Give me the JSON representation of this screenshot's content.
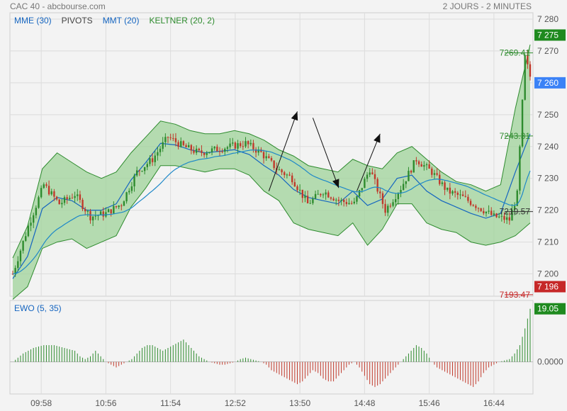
{
  "header": {
    "title": "CAC 40 - abcbourse.com",
    "period": "2 JOURS - 2 MINUTES"
  },
  "legend": [
    {
      "label": "MME (30)",
      "color": "#1565c0"
    },
    {
      "label": "PIVOTS",
      "color": "#444444"
    },
    {
      "label": "MMT (20)",
      "color": "#1565c0"
    },
    {
      "label": "KELTNER (20, 2)",
      "color": "#2e8b2e"
    }
  ],
  "colors": {
    "up": "#2e8b2e",
    "down": "#c0392b",
    "band_fill": "#9fd39a",
    "band_line": "#2e8b2e",
    "mme": "#1e88c8",
    "mmt": "#1565c0",
    "price_tag_up": "#1f8a1f",
    "price_tag_current": "#3b82f6",
    "price_tag_down": "#c62828",
    "grid": "#dcdcdc"
  },
  "chart_data": [
    {
      "type": "candlestick",
      "title": "CAC 40",
      "ylim": [
        7193,
        7282
      ],
      "y_ticks": [
        "7 280",
        "7 270",
        "7 260",
        "7 250",
        "7 240",
        "7 230",
        "7 220",
        "7 210",
        "7 200"
      ],
      "y_tick_values": [
        7280,
        7270,
        7260,
        7250,
        7240,
        7230,
        7220,
        7210,
        7200
      ],
      "x_ticks": [
        "09:58",
        "10:56",
        "11:54",
        "12:52",
        "13:50",
        "14:48",
        "15:46",
        "16:44"
      ],
      "price_path": [
        [
          0,
          7200
        ],
        [
          6,
          7215
        ],
        [
          12,
          7228
        ],
        [
          18,
          7222
        ],
        [
          24,
          7225
        ],
        [
          30,
          7218
        ],
        [
          36,
          7219
        ],
        [
          42,
          7222
        ],
        [
          48,
          7232
        ],
        [
          54,
          7236
        ],
        [
          60,
          7243
        ],
        [
          66,
          7240
        ],
        [
          72,
          7238
        ],
        [
          78,
          7239
        ],
        [
          84,
          7240
        ],
        [
          90,
          7241
        ],
        [
          96,
          7238
        ],
        [
          102,
          7233
        ],
        [
          108,
          7230
        ],
        [
          114,
          7222
        ],
        [
          120,
          7226
        ],
        [
          126,
          7223
        ],
        [
          132,
          7222
        ],
        [
          138,
          7233
        ],
        [
          144,
          7220
        ],
        [
          150,
          7227
        ],
        [
          156,
          7236
        ],
        [
          162,
          7232
        ],
        [
          168,
          7226
        ],
        [
          174,
          7224
        ],
        [
          180,
          7221
        ],
        [
          186,
          7218
        ],
        [
          192,
          7217
        ],
        [
          195,
          7225
        ],
        [
          198,
          7268
        ],
        [
          200,
          7262
        ]
      ],
      "bands": {
        "upper": [
          7205,
          7215,
          7233,
          7238,
          7235,
          7232,
          7230,
          7232,
          7238,
          7243,
          7248,
          7247,
          7245,
          7244,
          7244,
          7245,
          7244,
          7242,
          7239,
          7237,
          7234,
          7233,
          7232,
          7236,
          7234,
          7233,
          7238,
          7240,
          7236,
          7232,
          7229,
          7228,
          7226,
          7228,
          7252,
          7272
        ],
        "lower": [
          7192,
          7196,
          7208,
          7210,
          7211,
          7208,
          7210,
          7212,
          7221,
          7227,
          7234,
          7234,
          7233,
          7232,
          7233,
          7233,
          7231,
          7226,
          7223,
          7216,
          7214,
          7213,
          7212,
          7216,
          7209,
          7214,
          7222,
          7222,
          7216,
          7214,
          7213,
          7210,
          7209,
          7210,
          7212,
          7216
        ]
      },
      "price_labels": [
        {
          "text": "7269.41",
          "value": 7269.41,
          "color": "#2e8b2e"
        },
        {
          "text": "7243.31",
          "value": 7243.31,
          "color": "#2e8b2e"
        },
        {
          "text": "7219.57",
          "value": 7219.57,
          "color": "#333333"
        },
        {
          "text": "7193.47",
          "value": 7193.47,
          "color": "#c62828"
        }
      ],
      "price_tags": [
        {
          "text": "7 275",
          "value": 7275,
          "kind": "up"
        },
        {
          "text": "7 260",
          "value": 7260,
          "kind": "current"
        },
        {
          "text": "7 196",
          "value": 7196,
          "kind": "down"
        }
      ]
    },
    {
      "type": "bar",
      "title": "EWO (5, 35)",
      "zero_label": "0.0000",
      "last_value_tag": "19.05",
      "ylim": [
        -10,
        20
      ],
      "values_path": [
        [
          0,
          0
        ],
        [
          4,
          3
        ],
        [
          8,
          5
        ],
        [
          12,
          6
        ],
        [
          16,
          6
        ],
        [
          20,
          5
        ],
        [
          24,
          4
        ],
        [
          26,
          2
        ],
        [
          28,
          1
        ],
        [
          30,
          2
        ],
        [
          32,
          4
        ],
        [
          34,
          2
        ],
        [
          36,
          0
        ],
        [
          38,
          -1
        ],
        [
          40,
          -2
        ],
        [
          42,
          -1
        ],
        [
          44,
          0
        ],
        [
          46,
          1
        ],
        [
          48,
          3
        ],
        [
          50,
          5
        ],
        [
          52,
          6
        ],
        [
          54,
          6
        ],
        [
          56,
          5
        ],
        [
          58,
          4
        ],
        [
          60,
          5
        ],
        [
          62,
          6
        ],
        [
          64,
          7
        ],
        [
          66,
          8
        ],
        [
          68,
          6
        ],
        [
          70,
          4
        ],
        [
          72,
          2
        ],
        [
          74,
          1
        ],
        [
          76,
          0
        ],
        [
          78,
          -0.5
        ],
        [
          80,
          -1
        ],
        [
          82,
          -1
        ],
        [
          84,
          -0.5
        ],
        [
          86,
          0
        ],
        [
          88,
          1
        ],
        [
          90,
          1.5
        ],
        [
          92,
          1
        ],
        [
          94,
          0.5
        ],
        [
          96,
          0
        ],
        [
          98,
          -1
        ],
        [
          100,
          -3
        ],
        [
          102,
          -4
        ],
        [
          104,
          -5
        ],
        [
          106,
          -6
        ],
        [
          108,
          -7
        ],
        [
          110,
          -8
        ],
        [
          112,
          -7
        ],
        [
          114,
          -5
        ],
        [
          116,
          -3
        ],
        [
          118,
          -4
        ],
        [
          120,
          -6
        ],
        [
          122,
          -7
        ],
        [
          124,
          -7
        ],
        [
          126,
          -5
        ],
        [
          128,
          -3
        ],
        [
          130,
          -1
        ],
        [
          132,
          0
        ],
        [
          134,
          -2
        ],
        [
          136,
          -5
        ],
        [
          138,
          -8
        ],
        [
          140,
          -9
        ],
        [
          142,
          -8
        ],
        [
          144,
          -6
        ],
        [
          146,
          -4
        ],
        [
          148,
          -2
        ],
        [
          150,
          0
        ],
        [
          152,
          2
        ],
        [
          154,
          4
        ],
        [
          156,
          6
        ],
        [
          158,
          5
        ],
        [
          160,
          3
        ],
        [
          162,
          0
        ],
        [
          164,
          -2
        ],
        [
          166,
          -3
        ],
        [
          168,
          -4
        ],
        [
          170,
          -5
        ],
        [
          172,
          -6
        ],
        [
          174,
          -7
        ],
        [
          176,
          -8
        ],
        [
          178,
          -9
        ],
        [
          180,
          -7
        ],
        [
          182,
          -4
        ],
        [
          184,
          -2
        ],
        [
          186,
          -1
        ],
        [
          188,
          0
        ],
        [
          190,
          0.5
        ],
        [
          192,
          1
        ],
        [
          194,
          3
        ],
        [
          196,
          6
        ],
        [
          198,
          12
        ],
        [
          200,
          19.05
        ]
      ]
    }
  ]
}
